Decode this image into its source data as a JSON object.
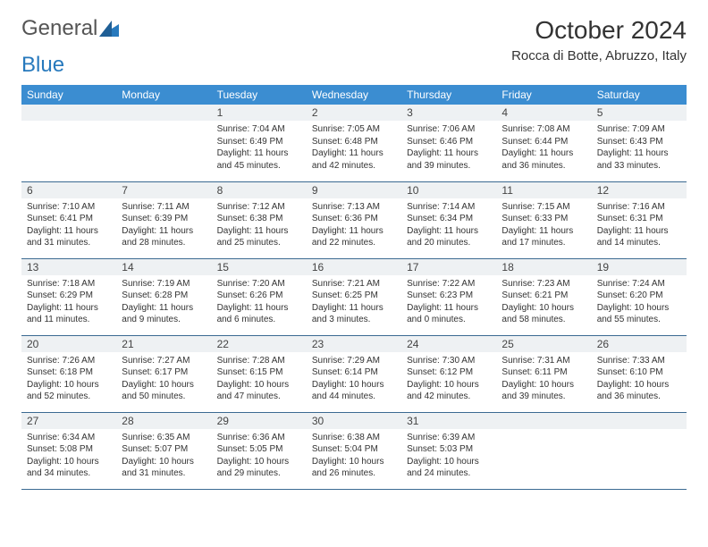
{
  "branding": {
    "logo_part1": "General",
    "logo_part2": "Blue"
  },
  "header": {
    "title": "October 2024",
    "location": "Rocca di Botte, Abruzzo, Italy"
  },
  "colors": {
    "header_bg": "#3b8dd1",
    "header_text": "#ffffff",
    "daynum_bg": "#eef1f3",
    "row_border": "#3b6a92",
    "logo_blue": "#2779bd"
  },
  "weekdays": [
    "Sunday",
    "Monday",
    "Tuesday",
    "Wednesday",
    "Thursday",
    "Friday",
    "Saturday"
  ],
  "weeks": [
    [
      {
        "empty": true
      },
      {
        "empty": true
      },
      {
        "num": "1",
        "sunrise": "Sunrise: 7:04 AM",
        "sunset": "Sunset: 6:49 PM",
        "daylight": "Daylight: 11 hours and 45 minutes."
      },
      {
        "num": "2",
        "sunrise": "Sunrise: 7:05 AM",
        "sunset": "Sunset: 6:48 PM",
        "daylight": "Daylight: 11 hours and 42 minutes."
      },
      {
        "num": "3",
        "sunrise": "Sunrise: 7:06 AM",
        "sunset": "Sunset: 6:46 PM",
        "daylight": "Daylight: 11 hours and 39 minutes."
      },
      {
        "num": "4",
        "sunrise": "Sunrise: 7:08 AM",
        "sunset": "Sunset: 6:44 PM",
        "daylight": "Daylight: 11 hours and 36 minutes."
      },
      {
        "num": "5",
        "sunrise": "Sunrise: 7:09 AM",
        "sunset": "Sunset: 6:43 PM",
        "daylight": "Daylight: 11 hours and 33 minutes."
      }
    ],
    [
      {
        "num": "6",
        "sunrise": "Sunrise: 7:10 AM",
        "sunset": "Sunset: 6:41 PM",
        "daylight": "Daylight: 11 hours and 31 minutes."
      },
      {
        "num": "7",
        "sunrise": "Sunrise: 7:11 AM",
        "sunset": "Sunset: 6:39 PM",
        "daylight": "Daylight: 11 hours and 28 minutes."
      },
      {
        "num": "8",
        "sunrise": "Sunrise: 7:12 AM",
        "sunset": "Sunset: 6:38 PM",
        "daylight": "Daylight: 11 hours and 25 minutes."
      },
      {
        "num": "9",
        "sunrise": "Sunrise: 7:13 AM",
        "sunset": "Sunset: 6:36 PM",
        "daylight": "Daylight: 11 hours and 22 minutes."
      },
      {
        "num": "10",
        "sunrise": "Sunrise: 7:14 AM",
        "sunset": "Sunset: 6:34 PM",
        "daylight": "Daylight: 11 hours and 20 minutes."
      },
      {
        "num": "11",
        "sunrise": "Sunrise: 7:15 AM",
        "sunset": "Sunset: 6:33 PM",
        "daylight": "Daylight: 11 hours and 17 minutes."
      },
      {
        "num": "12",
        "sunrise": "Sunrise: 7:16 AM",
        "sunset": "Sunset: 6:31 PM",
        "daylight": "Daylight: 11 hours and 14 minutes."
      }
    ],
    [
      {
        "num": "13",
        "sunrise": "Sunrise: 7:18 AM",
        "sunset": "Sunset: 6:29 PM",
        "daylight": "Daylight: 11 hours and 11 minutes."
      },
      {
        "num": "14",
        "sunrise": "Sunrise: 7:19 AM",
        "sunset": "Sunset: 6:28 PM",
        "daylight": "Daylight: 11 hours and 9 minutes."
      },
      {
        "num": "15",
        "sunrise": "Sunrise: 7:20 AM",
        "sunset": "Sunset: 6:26 PM",
        "daylight": "Daylight: 11 hours and 6 minutes."
      },
      {
        "num": "16",
        "sunrise": "Sunrise: 7:21 AM",
        "sunset": "Sunset: 6:25 PM",
        "daylight": "Daylight: 11 hours and 3 minutes."
      },
      {
        "num": "17",
        "sunrise": "Sunrise: 7:22 AM",
        "sunset": "Sunset: 6:23 PM",
        "daylight": "Daylight: 11 hours and 0 minutes."
      },
      {
        "num": "18",
        "sunrise": "Sunrise: 7:23 AM",
        "sunset": "Sunset: 6:21 PM",
        "daylight": "Daylight: 10 hours and 58 minutes."
      },
      {
        "num": "19",
        "sunrise": "Sunrise: 7:24 AM",
        "sunset": "Sunset: 6:20 PM",
        "daylight": "Daylight: 10 hours and 55 minutes."
      }
    ],
    [
      {
        "num": "20",
        "sunrise": "Sunrise: 7:26 AM",
        "sunset": "Sunset: 6:18 PM",
        "daylight": "Daylight: 10 hours and 52 minutes."
      },
      {
        "num": "21",
        "sunrise": "Sunrise: 7:27 AM",
        "sunset": "Sunset: 6:17 PM",
        "daylight": "Daylight: 10 hours and 50 minutes."
      },
      {
        "num": "22",
        "sunrise": "Sunrise: 7:28 AM",
        "sunset": "Sunset: 6:15 PM",
        "daylight": "Daylight: 10 hours and 47 minutes."
      },
      {
        "num": "23",
        "sunrise": "Sunrise: 7:29 AM",
        "sunset": "Sunset: 6:14 PM",
        "daylight": "Daylight: 10 hours and 44 minutes."
      },
      {
        "num": "24",
        "sunrise": "Sunrise: 7:30 AM",
        "sunset": "Sunset: 6:12 PM",
        "daylight": "Daylight: 10 hours and 42 minutes."
      },
      {
        "num": "25",
        "sunrise": "Sunrise: 7:31 AM",
        "sunset": "Sunset: 6:11 PM",
        "daylight": "Daylight: 10 hours and 39 minutes."
      },
      {
        "num": "26",
        "sunrise": "Sunrise: 7:33 AM",
        "sunset": "Sunset: 6:10 PM",
        "daylight": "Daylight: 10 hours and 36 minutes."
      }
    ],
    [
      {
        "num": "27",
        "sunrise": "Sunrise: 6:34 AM",
        "sunset": "Sunset: 5:08 PM",
        "daylight": "Daylight: 10 hours and 34 minutes."
      },
      {
        "num": "28",
        "sunrise": "Sunrise: 6:35 AM",
        "sunset": "Sunset: 5:07 PM",
        "daylight": "Daylight: 10 hours and 31 minutes."
      },
      {
        "num": "29",
        "sunrise": "Sunrise: 6:36 AM",
        "sunset": "Sunset: 5:05 PM",
        "daylight": "Daylight: 10 hours and 29 minutes."
      },
      {
        "num": "30",
        "sunrise": "Sunrise: 6:38 AM",
        "sunset": "Sunset: 5:04 PM",
        "daylight": "Daylight: 10 hours and 26 minutes."
      },
      {
        "num": "31",
        "sunrise": "Sunrise: 6:39 AM",
        "sunset": "Sunset: 5:03 PM",
        "daylight": "Daylight: 10 hours and 24 minutes."
      },
      {
        "empty": true
      },
      {
        "empty": true
      }
    ]
  ]
}
